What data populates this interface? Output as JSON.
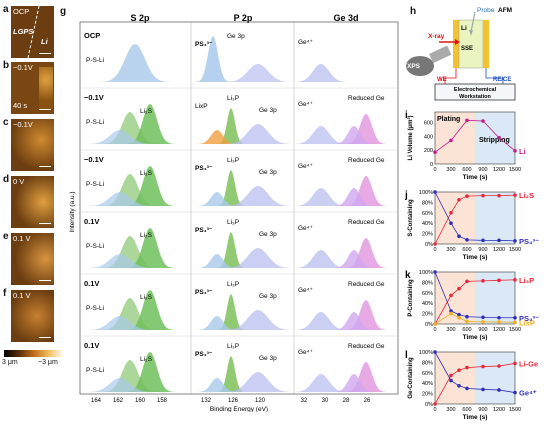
{
  "panels": {
    "a": {
      "letter": "a",
      "label": "OCP",
      "extra": [
        "LGPS",
        "Li"
      ]
    },
    "b": {
      "letter": "b",
      "label": "−0.1V",
      "extra": [
        "40 s"
      ]
    },
    "c": {
      "letter": "c",
      "label": "−0.1V"
    },
    "d": {
      "letter": "d",
      "label": "0 V"
    },
    "e": {
      "letter": "e",
      "label": "0.1 V"
    },
    "f": {
      "letter": "f",
      "label": "0.1 V"
    }
  },
  "colorbar": {
    "min": "3 μm",
    "max": "−3 μm"
  },
  "xps": {
    "letter": "g",
    "columns": [
      "S 2p",
      "P 2p",
      "Ge 3d"
    ],
    "ylabel": "Intensity (a.u.)",
    "xlabel": "Binding Energy (eV)",
    "xticks": [
      "164",
      "162",
      "160",
      "158",
      "132",
      "126",
      "120",
      "32",
      "30",
      "28",
      "26"
    ],
    "rows": [
      {
        "label": "OCP",
        "s": [
          "P-S-Li"
        ],
        "p": [
          "PS₄³⁻",
          "Ge 3p"
        ],
        "ge": [
          "Ge⁴⁺"
        ]
      },
      {
        "label": "−0.1V",
        "s": [
          "P-S-Li",
          "Li₂S"
        ],
        "p": [
          "LixP",
          "Li₃P",
          "Ge 3p"
        ],
        "ge": [
          "Ge⁴⁺",
          "Reduced Ge"
        ]
      },
      {
        "label": "−0.1V",
        "s": [
          "P-S-Li",
          "Li₂S"
        ],
        "p": [
          "PS₄³⁻",
          "Li₃P",
          "Ge 3p"
        ],
        "ge": [
          "Ge⁴⁺",
          "Reduced Ge"
        ]
      },
      {
        "label": "0.1V",
        "s": [
          "P-S-Li",
          "Li₂S"
        ],
        "p": [
          "PS₄³⁻",
          "Li₃P",
          "Ge 3p"
        ],
        "ge": [
          "Ge⁴⁺",
          "Reduced Ge"
        ]
      },
      {
        "label": "0.1V",
        "s": [
          "P-S-Li",
          "Li₂S"
        ],
        "p": [
          "PS₄³⁻",
          "Li₃P",
          "Ge 3p"
        ],
        "ge": [
          "Ge⁴⁺",
          "Reduced Ge"
        ]
      },
      {
        "label": "0.1V",
        "s": [
          "P-S-Li",
          "Li₂S"
        ],
        "p": [
          "PS₄³⁻",
          "Li₃P",
          "Ge 3p"
        ],
        "ge": [
          "Ge⁴⁺",
          "Reduced Ge"
        ]
      }
    ]
  },
  "schematic": {
    "letter": "h",
    "probe": "Probe",
    "afm": "AFM",
    "xray": "X-ray",
    "li": "Li",
    "sse": "SSE",
    "xps": "XPS",
    "we": "WE",
    "rece": "RE/CE",
    "workstation": "Electrochemical Workstation"
  },
  "chart_data": [
    {
      "letter": "i",
      "type": "line",
      "ylabel": "Li Volume (μm³)",
      "xlabel": "Time (s)",
      "xticks": [
        0,
        300,
        600,
        900,
        1200,
        1500
      ],
      "ylim": [
        0,
        750
      ],
      "yticks": [
        0,
        200,
        400,
        600
      ],
      "regions": [
        "Plating",
        "Stripping"
      ],
      "series": [
        {
          "name": "Li",
          "color": "#c0208f",
          "x": [
            0,
            300,
            600,
            900,
            1200,
            1500
          ],
          "values": [
            170,
            340,
            630,
            620,
            380,
            190
          ]
        }
      ]
    },
    {
      "letter": "j",
      "type": "line",
      "ylabel": "S-Containing",
      "xlabel": "Time (s)",
      "xticks": [
        0,
        300,
        600,
        900,
        1200,
        1500
      ],
      "ylim": [
        0,
        100
      ],
      "yticks": [
        "0%",
        "20%",
        "40%",
        "60%",
        "80%",
        "100%"
      ],
      "series": [
        {
          "name": "Li₂S",
          "color": "#e8283a",
          "x": [
            0,
            300,
            450,
            600,
            900,
            1200,
            1500
          ],
          "values": [
            0,
            60,
            85,
            92,
            93,
            93,
            94
          ]
        },
        {
          "name": "PS₄³⁻",
          "color": "#2e2eb8",
          "x": [
            0,
            300,
            450,
            600,
            900,
            1200,
            1500
          ],
          "values": [
            100,
            40,
            15,
            8,
            7,
            7,
            6
          ]
        }
      ]
    },
    {
      "letter": "k",
      "type": "line",
      "ylabel": "P-Containing",
      "xlabel": "Time (s)",
      "xticks": [
        0,
        300,
        600,
        900,
        1200,
        1500
      ],
      "ylim": [
        0,
        100
      ],
      "yticks": [
        "0%",
        "20%",
        "40%",
        "60%",
        "80%",
        "100%"
      ],
      "series": [
        {
          "name": "Li₃P",
          "color": "#e8283a",
          "x": [
            0,
            300,
            450,
            600,
            900,
            1200,
            1500
          ],
          "values": [
            0,
            55,
            68,
            82,
            83,
            84,
            85
          ]
        },
        {
          "name": "PS₄³⁻",
          "color": "#2e2eb8",
          "x": [
            0,
            300,
            450,
            600,
            900,
            1200,
            1500
          ],
          "values": [
            100,
            25,
            18,
            14,
            13,
            12,
            12
          ]
        },
        {
          "name": "LixP",
          "color": "#f0b020",
          "x": [
            0,
            300,
            450,
            600,
            900,
            1200,
            1500
          ],
          "values": [
            0,
            20,
            12,
            5,
            4,
            4,
            3
          ]
        }
      ]
    },
    {
      "letter": "l",
      "type": "line",
      "ylabel": "Ge-Containing",
      "xlabel": "Time (s)",
      "xticks": [
        0,
        300,
        600,
        900,
        1200,
        1500
      ],
      "ylim": [
        0,
        100
      ],
      "yticks": [
        "0%",
        "20%",
        "40%",
        "60%",
        "80%",
        "100%"
      ],
      "series": [
        {
          "name": "Li-Ge",
          "color": "#e8283a",
          "x": [
            0,
            300,
            450,
            600,
            900,
            1200,
            1500
          ],
          "values": [
            0,
            55,
            65,
            70,
            72,
            73,
            78
          ]
        },
        {
          "name": "Ge⁴⁺",
          "color": "#2e2eb8",
          "x": [
            0,
            300,
            450,
            600,
            900,
            1200,
            1500
          ],
          "values": [
            100,
            45,
            35,
            30,
            28,
            27,
            22
          ]
        }
      ]
    }
  ]
}
